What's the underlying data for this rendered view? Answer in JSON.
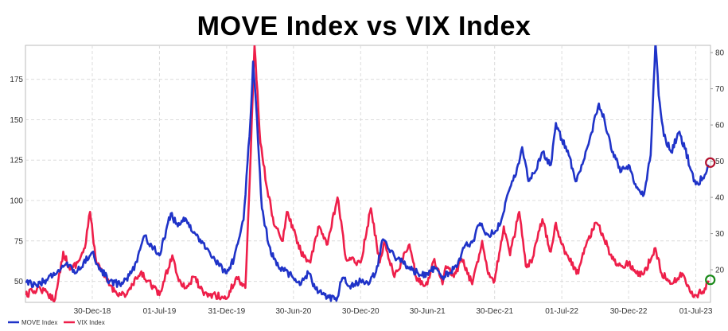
{
  "chart_data": {
    "type": "line",
    "title": "MOVE Index  vs  VIX Index",
    "x_tick_labels": [
      "30-Dec-18",
      "01-Jul-19",
      "31-Dec-19",
      "30-Jun-20",
      "30-Dec-20",
      "30-Jun-21",
      "30-Dec-21",
      "01-Jul-22",
      "30-Dec-22",
      "01-Jul-23"
    ],
    "x_tick_dates": [
      "2018-12-30",
      "2019-07-01",
      "2019-12-31",
      "2020-06-30",
      "2020-12-30",
      "2021-06-30",
      "2021-12-30",
      "2022-07-01",
      "2022-12-30",
      "2023-07-01"
    ],
    "x_range": [
      "2018-07-01",
      "2023-08-10"
    ],
    "y_left": {
      "ticks": [
        50,
        75,
        100,
        125,
        150,
        175
      ],
      "range": [
        37,
        196
      ]
    },
    "y_right": {
      "ticks": [
        20,
        30,
        40,
        50,
        60,
        70,
        80
      ],
      "range": [
        11,
        82
      ]
    },
    "grid": true,
    "legend_position": "bottom-left",
    "series": [
      {
        "name": "MOVE Index",
        "axis": "left",
        "color": "#1f33c8",
        "points": [
          [
            "2018-07-01",
            50
          ],
          [
            "2018-08-01",
            47
          ],
          [
            "2018-09-01",
            52
          ],
          [
            "2018-10-01",
            56
          ],
          [
            "2018-10-20",
            61
          ],
          [
            "2018-11-15",
            55
          ],
          [
            "2018-12-30",
            68
          ],
          [
            "2019-01-15",
            60
          ],
          [
            "2019-02-15",
            50
          ],
          [
            "2019-03-15",
            48
          ],
          [
            "2019-04-15",
            55
          ],
          [
            "2019-05-01",
            62
          ],
          [
            "2019-05-20",
            78
          ],
          [
            "2019-06-10",
            72
          ],
          [
            "2019-07-01",
            66
          ],
          [
            "2019-08-01",
            92
          ],
          [
            "2019-08-20",
            84
          ],
          [
            "2019-09-10",
            89
          ],
          [
            "2019-10-01",
            80
          ],
          [
            "2019-10-20",
            76
          ],
          [
            "2019-11-10",
            70
          ],
          [
            "2019-12-01",
            62
          ],
          [
            "2019-12-31",
            55
          ],
          [
            "2020-01-20",
            64
          ],
          [
            "2020-02-15",
            88
          ],
          [
            "2020-03-05",
            150
          ],
          [
            "2020-03-12",
            186
          ],
          [
            "2020-03-20",
            160
          ],
          [
            "2020-04-05",
            95
          ],
          [
            "2020-04-25",
            72
          ],
          [
            "2020-05-15",
            60
          ],
          [
            "2020-06-01",
            58
          ],
          [
            "2020-06-30",
            52
          ],
          [
            "2020-07-20",
            48
          ],
          [
            "2020-08-10",
            55
          ],
          [
            "2020-08-30",
            45
          ],
          [
            "2020-09-15",
            42
          ],
          [
            "2020-10-05",
            40
          ],
          [
            "2020-10-25",
            38
          ],
          [
            "2020-11-10",
            52
          ],
          [
            "2020-11-30",
            47
          ],
          [
            "2020-12-30",
            50
          ],
          [
            "2021-01-20",
            48
          ],
          [
            "2021-02-10",
            56
          ],
          [
            "2021-03-01",
            76
          ],
          [
            "2021-03-20",
            68
          ],
          [
            "2021-04-10",
            64
          ],
          [
            "2021-05-01",
            60
          ],
          [
            "2021-05-20",
            57
          ],
          [
            "2021-06-10",
            54
          ],
          [
            "2021-06-30",
            55
          ],
          [
            "2021-07-20",
            58
          ],
          [
            "2021-08-10",
            53
          ],
          [
            "2021-08-30",
            55
          ],
          [
            "2021-09-20",
            60
          ],
          [
            "2021-10-10",
            72
          ],
          [
            "2021-10-30",
            74
          ],
          [
            "2021-11-20",
            86
          ],
          [
            "2021-12-10",
            79
          ],
          [
            "2021-12-30",
            80
          ],
          [
            "2022-01-20",
            90
          ],
          [
            "2022-02-10",
            108
          ],
          [
            "2022-03-01",
            120
          ],
          [
            "2022-03-15",
            133
          ],
          [
            "2022-04-01",
            112
          ],
          [
            "2022-04-20",
            118
          ],
          [
            "2022-05-10",
            130
          ],
          [
            "2022-06-01",
            122
          ],
          [
            "2022-06-15",
            148
          ],
          [
            "2022-07-01",
            138
          ],
          [
            "2022-07-20",
            128
          ],
          [
            "2022-08-10",
            112
          ],
          [
            "2022-09-01",
            126
          ],
          [
            "2022-09-20",
            142
          ],
          [
            "2022-10-10",
            160
          ],
          [
            "2022-10-25",
            150
          ],
          [
            "2022-11-15",
            130
          ],
          [
            "2022-12-10",
            118
          ],
          [
            "2022-12-30",
            122
          ],
          [
            "2023-01-20",
            108
          ],
          [
            "2023-02-10",
            104
          ],
          [
            "2023-02-28",
            128
          ],
          [
            "2023-03-13",
            198
          ],
          [
            "2023-03-22",
            165
          ],
          [
            "2023-04-05",
            140
          ],
          [
            "2023-04-25",
            130
          ],
          [
            "2023-05-15",
            142
          ],
          [
            "2023-06-01",
            132
          ],
          [
            "2023-06-20",
            118
          ],
          [
            "2023-07-01",
            110
          ],
          [
            "2023-07-20",
            114
          ],
          [
            "2023-08-05",
            122
          ]
        ]
      },
      {
        "name": "VIX Index",
        "axis": "right",
        "color": "#ee1f4a",
        "points": [
          [
            "2018-07-01",
            13
          ],
          [
            "2018-07-20",
            14
          ],
          [
            "2018-08-10",
            15
          ],
          [
            "2018-09-01",
            13
          ],
          [
            "2018-09-20",
            12
          ],
          [
            "2018-10-12",
            25
          ],
          [
            "2018-10-30",
            20
          ],
          [
            "2018-11-20",
            22
          ],
          [
            "2018-12-10",
            26
          ],
          [
            "2018-12-24",
            36
          ],
          [
            "2019-01-10",
            22
          ],
          [
            "2019-02-01",
            18
          ],
          [
            "2019-03-01",
            14
          ],
          [
            "2019-04-01",
            13
          ],
          [
            "2019-05-10",
            19
          ],
          [
            "2019-06-01",
            17
          ],
          [
            "2019-07-01",
            13
          ],
          [
            "2019-08-05",
            24
          ],
          [
            "2019-08-20",
            18
          ],
          [
            "2019-09-10",
            15
          ],
          [
            "2019-10-05",
            18
          ],
          [
            "2019-10-30",
            13
          ],
          [
            "2019-12-01",
            13
          ],
          [
            "2019-12-31",
            12
          ],
          [
            "2020-01-27",
            18
          ],
          [
            "2020-02-20",
            15
          ],
          [
            "2020-03-01",
            40
          ],
          [
            "2020-03-16",
            82
          ],
          [
            "2020-04-01",
            55
          ],
          [
            "2020-04-20",
            42
          ],
          [
            "2020-05-10",
            32
          ],
          [
            "2020-06-01",
            28
          ],
          [
            "2020-06-12",
            36
          ],
          [
            "2020-06-30",
            31
          ],
          [
            "2020-07-20",
            25
          ],
          [
            "2020-08-15",
            22
          ],
          [
            "2020-09-08",
            32
          ],
          [
            "2020-10-01",
            27
          ],
          [
            "2020-10-28",
            40
          ],
          [
            "2020-11-20",
            23
          ],
          [
            "2020-12-30",
            22
          ],
          [
            "2021-01-27",
            37
          ],
          [
            "2021-02-20",
            22
          ],
          [
            "2021-03-05",
            28
          ],
          [
            "2021-04-01",
            18
          ],
          [
            "2021-05-12",
            27
          ],
          [
            "2021-06-01",
            17
          ],
          [
            "2021-06-30",
            16
          ],
          [
            "2021-07-19",
            23
          ],
          [
            "2021-08-10",
            16
          ],
          [
            "2021-08-19",
            21
          ],
          [
            "2021-09-10",
            18
          ],
          [
            "2021-10-01",
            23
          ],
          [
            "2021-10-30",
            16
          ],
          [
            "2021-11-26",
            28
          ],
          [
            "2021-12-10",
            20
          ],
          [
            "2021-12-30",
            17
          ],
          [
            "2022-01-24",
            32
          ],
          [
            "2022-02-10",
            24
          ],
          [
            "2022-03-07",
            36
          ],
          [
            "2022-03-25",
            21
          ],
          [
            "2022-04-10",
            22
          ],
          [
            "2022-05-09",
            34
          ],
          [
            "2022-06-01",
            25
          ],
          [
            "2022-06-15",
            33
          ],
          [
            "2022-07-01",
            27
          ],
          [
            "2022-07-20",
            23
          ],
          [
            "2022-08-15",
            19
          ],
          [
            "2022-09-01",
            26
          ],
          [
            "2022-10-01",
            33
          ],
          [
            "2022-10-20",
            30
          ],
          [
            "2022-11-15",
            23
          ],
          [
            "2022-12-10",
            21
          ],
          [
            "2022-12-30",
            22
          ],
          [
            "2023-01-20",
            19
          ],
          [
            "2023-02-10",
            19
          ],
          [
            "2023-03-13",
            26
          ],
          [
            "2023-03-30",
            19
          ],
          [
            "2023-04-20",
            17
          ],
          [
            "2023-05-10",
            17
          ],
          [
            "2023-05-25",
            19
          ],
          [
            "2023-06-15",
            14
          ],
          [
            "2023-07-01",
            13
          ],
          [
            "2023-07-20",
            14
          ],
          [
            "2023-08-05",
            17
          ]
        ]
      }
    ]
  }
}
